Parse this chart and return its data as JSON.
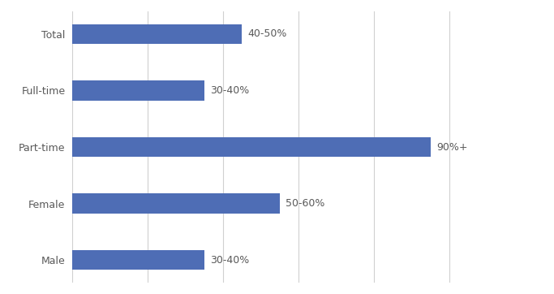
{
  "categories": [
    "Male",
    "Female",
    "Part-time",
    "Full-time",
    "Total"
  ],
  "values": [
    35,
    55,
    95,
    35,
    45
  ],
  "labels": [
    "30-40%",
    "50-60%",
    "90%+",
    "30-40%",
    "40-50%"
  ],
  "bar_color": "#4e6db5",
  "background_color": "#ffffff",
  "grid_color": "#d0d0d0",
  "label_color": "#595959",
  "category_color": "#595959",
  "xlim": [
    0,
    110
  ],
  "bar_height": 0.35,
  "figsize": [
    6.83,
    3.62
  ],
  "dpi": 100,
  "label_fontsize": 9,
  "category_fontsize": 9,
  "tick_fontsize": 9,
  "x_ticks": [
    0,
    20,
    40,
    60,
    80,
    100
  ]
}
